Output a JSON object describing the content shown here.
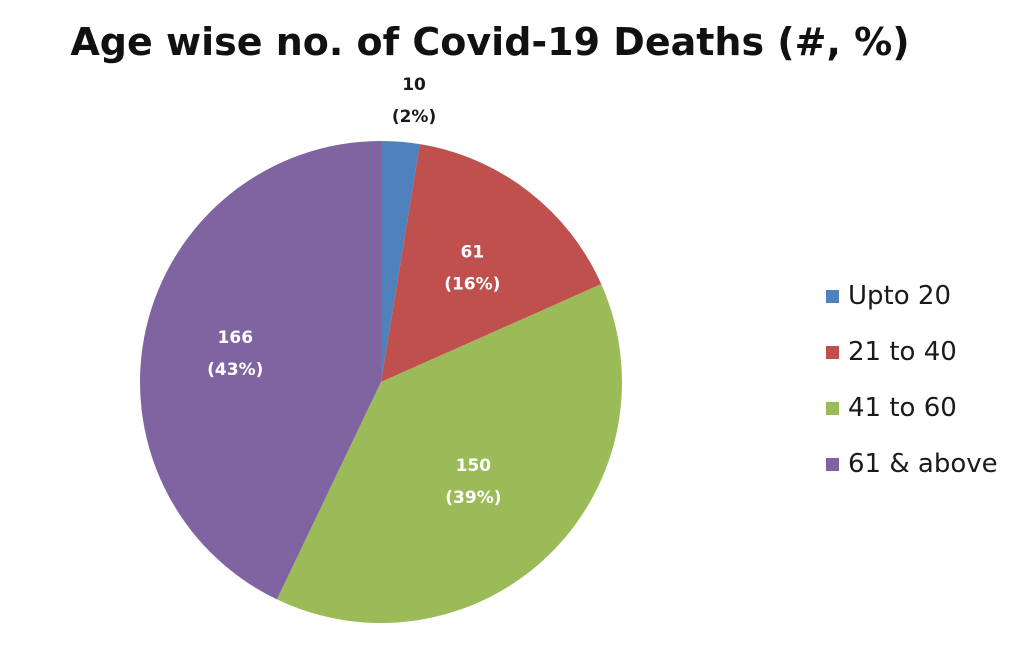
{
  "chart_data": {
    "type": "pie",
    "title": "Age wise no. of Covid-19 Deaths (#, %)",
    "categories": [
      "Upto 20",
      "21 to 40",
      "41 to 60",
      "61 & above"
    ],
    "values": [
      10,
      61,
      150,
      166
    ],
    "percent_labels": [
      "(2%)",
      "(16%)",
      "(39%)",
      "(43%)"
    ],
    "colors": [
      "#4F81BD",
      "#C0504D",
      "#9BBB59",
      "#8064A2"
    ],
    "legend_position": "right",
    "start_angle": "12 o'clock",
    "direction": "clockwise"
  }
}
